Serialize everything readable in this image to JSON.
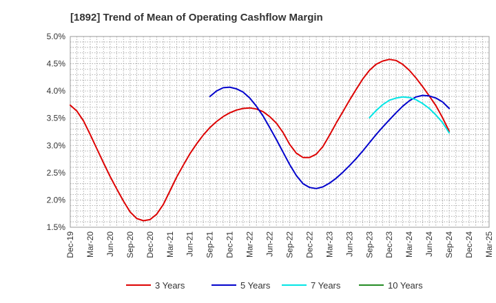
{
  "chart_data": {
    "type": "line",
    "title": "[1892]  Trend of Mean of Operating Cashflow Margin",
    "xlabel": "",
    "ylabel": "",
    "x_tick_labels": [
      "Dec-19",
      "Mar-20",
      "Jun-20",
      "Sep-20",
      "Dec-20",
      "Mar-21",
      "Jun-21",
      "Sep-21",
      "Dec-21",
      "Mar-22",
      "Jun-22",
      "Sep-22",
      "Dec-22",
      "Mar-23",
      "Jun-23",
      "Sep-23",
      "Dec-23",
      "Mar-24",
      "Jun-24",
      "Sep-24",
      "Dec-24",
      "Mar-25"
    ],
    "y_tick_labels": [
      "1.5%",
      "2.0%",
      "2.5%",
      "3.0%",
      "3.5%",
      "4.0%",
      "4.5%",
      "5.0%"
    ],
    "ylim": [
      1.5,
      5.0
    ],
    "x_minor_per_major": 3,
    "y_minor_per_major": 5,
    "grid": true,
    "legend_position": "bottom",
    "series": [
      {
        "name": "3 Years",
        "color": "#dd0000",
        "points": [
          [
            "Dec-19",
            3.74
          ],
          [
            "Jan-20",
            3.63
          ],
          [
            "Feb-20",
            3.45
          ],
          [
            "Mar-20",
            3.2
          ],
          [
            "Apr-20",
            2.94
          ],
          [
            "May-20",
            2.68
          ],
          [
            "Jun-20",
            2.43
          ],
          [
            "Jul-20",
            2.2
          ],
          [
            "Aug-20",
            1.98
          ],
          [
            "Sep-20",
            1.78
          ],
          [
            "Oct-20",
            1.66
          ],
          [
            "Nov-20",
            1.62
          ],
          [
            "Dec-20",
            1.64
          ],
          [
            "Jan-21",
            1.74
          ],
          [
            "Feb-21",
            1.92
          ],
          [
            "Mar-21",
            2.17
          ],
          [
            "Apr-21",
            2.42
          ],
          [
            "May-21",
            2.64
          ],
          [
            "Jun-21",
            2.85
          ],
          [
            "Jul-21",
            3.03
          ],
          [
            "Aug-21",
            3.19
          ],
          [
            "Sep-21",
            3.33
          ],
          [
            "Oct-21",
            3.44
          ],
          [
            "Nov-21",
            3.53
          ],
          [
            "Dec-21",
            3.6
          ],
          [
            "Jan-22",
            3.65
          ],
          [
            "Feb-22",
            3.68
          ],
          [
            "Mar-22",
            3.69
          ],
          [
            "Apr-22",
            3.67
          ],
          [
            "May-22",
            3.62
          ],
          [
            "Jun-22",
            3.53
          ],
          [
            "Jul-22",
            3.41
          ],
          [
            "Aug-22",
            3.24
          ],
          [
            "Sep-22",
            3.02
          ],
          [
            "Oct-22",
            2.86
          ],
          [
            "Nov-22",
            2.78
          ],
          [
            "Dec-22",
            2.78
          ],
          [
            "Jan-23",
            2.84
          ],
          [
            "Feb-23",
            2.98
          ],
          [
            "Mar-23",
            3.19
          ],
          [
            "Apr-23",
            3.41
          ],
          [
            "May-23",
            3.62
          ],
          [
            "Jun-23",
            3.83
          ],
          [
            "Jul-23",
            4.03
          ],
          [
            "Aug-23",
            4.22
          ],
          [
            "Sep-23",
            4.38
          ],
          [
            "Oct-23",
            4.49
          ],
          [
            "Nov-23",
            4.55
          ],
          [
            "Dec-23",
            4.58
          ],
          [
            "Jan-24",
            4.56
          ],
          [
            "Feb-24",
            4.49
          ],
          [
            "Mar-24",
            4.38
          ],
          [
            "Apr-24",
            4.24
          ],
          [
            "May-24",
            4.08
          ],
          [
            "Jun-24",
            3.91
          ],
          [
            "Jul-24",
            3.73
          ],
          [
            "Aug-24",
            3.51
          ],
          [
            "Sep-24",
            3.26
          ]
        ]
      },
      {
        "name": "5 Years",
        "color": "#0000cc",
        "points": [
          [
            "Sep-21",
            3.9
          ],
          [
            "Oct-21",
            4.0
          ],
          [
            "Nov-21",
            4.06
          ],
          [
            "Dec-21",
            4.07
          ],
          [
            "Jan-22",
            4.04
          ],
          [
            "Feb-22",
            3.98
          ],
          [
            "Mar-22",
            3.87
          ],
          [
            "Apr-22",
            3.72
          ],
          [
            "May-22",
            3.54
          ],
          [
            "Jun-22",
            3.33
          ],
          [
            "Jul-22",
            3.11
          ],
          [
            "Aug-22",
            2.88
          ],
          [
            "Sep-22",
            2.65
          ],
          [
            "Oct-22",
            2.45
          ],
          [
            "Nov-22",
            2.3
          ],
          [
            "Dec-22",
            2.23
          ],
          [
            "Jan-23",
            2.21
          ],
          [
            "Feb-23",
            2.24
          ],
          [
            "Mar-23",
            2.31
          ],
          [
            "Apr-23",
            2.4
          ],
          [
            "May-23",
            2.51
          ],
          [
            "Jun-23",
            2.63
          ],
          [
            "Jul-23",
            2.76
          ],
          [
            "Aug-23",
            2.9
          ],
          [
            "Sep-23",
            3.05
          ],
          [
            "Oct-23",
            3.2
          ],
          [
            "Nov-23",
            3.34
          ],
          [
            "Dec-23",
            3.47
          ],
          [
            "Jan-24",
            3.6
          ],
          [
            "Feb-24",
            3.72
          ],
          [
            "Mar-24",
            3.82
          ],
          [
            "Apr-24",
            3.89
          ],
          [
            "May-24",
            3.92
          ],
          [
            "Jun-24",
            3.91
          ],
          [
            "Jul-24",
            3.87
          ],
          [
            "Aug-24",
            3.8
          ],
          [
            "Sep-24",
            3.68
          ]
        ]
      },
      {
        "name": "7 Years",
        "color": "#00e5e5",
        "points": [
          [
            "Sep-23",
            3.51
          ],
          [
            "Oct-23",
            3.64
          ],
          [
            "Nov-23",
            3.75
          ],
          [
            "Dec-23",
            3.83
          ],
          [
            "Jan-24",
            3.87
          ],
          [
            "Feb-24",
            3.89
          ],
          [
            "Mar-24",
            3.88
          ],
          [
            "Apr-24",
            3.84
          ],
          [
            "May-24",
            3.77
          ],
          [
            "Jun-24",
            3.68
          ],
          [
            "Jul-24",
            3.56
          ],
          [
            "Aug-24",
            3.42
          ],
          [
            "Sep-24",
            3.23
          ]
        ]
      },
      {
        "name": "10 Years",
        "color": "#228b22",
        "points": []
      }
    ]
  }
}
